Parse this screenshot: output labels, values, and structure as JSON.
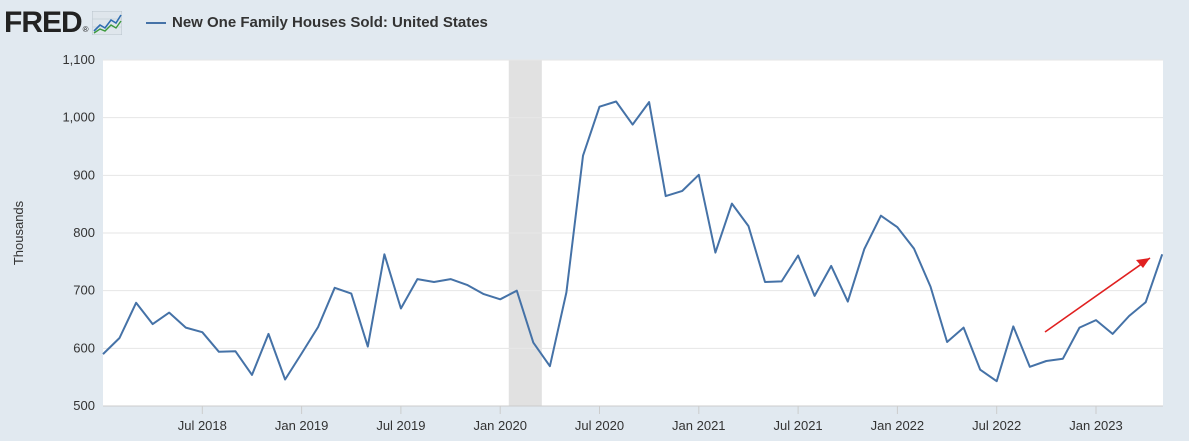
{
  "brand": {
    "logo_text": "FRED",
    "logo_mark": "®"
  },
  "colors": {
    "series": "#4572a7",
    "recession": "#e1e1e1",
    "annotation_arrow": "#e02020",
    "plot_background": "#ffffff",
    "page_background": "#e1e9f0"
  },
  "chart_data": {
    "type": "line",
    "title": "New One Family Houses Sold: United States",
    "ylabel": "Thousands",
    "xlabel": "",
    "ylim": [
      500,
      1100
    ],
    "yticks": [
      500,
      600,
      700,
      800,
      900,
      1000,
      1100
    ],
    "ytick_labels": [
      "500",
      "600",
      "700",
      "800",
      "900",
      "1,000",
      "1,100"
    ],
    "xticks": [
      {
        "label": "Jul 2018",
        "index": 6
      },
      {
        "label": "Jan 2019",
        "index": 12
      },
      {
        "label": "Jul 2019",
        "index": 18
      },
      {
        "label": "Jan 2020",
        "index": 24
      },
      {
        "label": "Jul 2020",
        "index": 30
      },
      {
        "label": "Jan 2021",
        "index": 36
      },
      {
        "label": "Jul 2021",
        "index": 42
      },
      {
        "label": "Jan 2022",
        "index": 48
      },
      {
        "label": "Jul 2022",
        "index": 54
      },
      {
        "label": "Jan 2023",
        "index": 60
      }
    ],
    "x_start": "Jan 2018",
    "x_end": "Apr 2023",
    "recession": {
      "start_index": 25,
      "end_index": 27
    },
    "series": [
      {
        "name": "New One Family Houses Sold: United States",
        "values": [
          590,
          618,
          679,
          642,
          662,
          636,
          628,
          594,
          595,
          554,
          625,
          546,
          591,
          637,
          705,
          695,
          603,
          763,
          669,
          720,
          715,
          720,
          710,
          694,
          685,
          700,
          610,
          569,
          697,
          934,
          1019,
          1028,
          988,
          1027,
          864,
          873,
          901,
          766,
          851,
          812,
          715,
          716,
          761,
          691,
          743,
          681,
          772,
          830,
          810,
          773,
          707,
          611,
          636,
          563,
          543,
          638,
          568,
          578,
          582,
          636,
          649,
          625,
          656,
          680,
          763
        ]
      }
    ],
    "annotation": {
      "type": "arrow",
      "description_text": ""
    }
  }
}
